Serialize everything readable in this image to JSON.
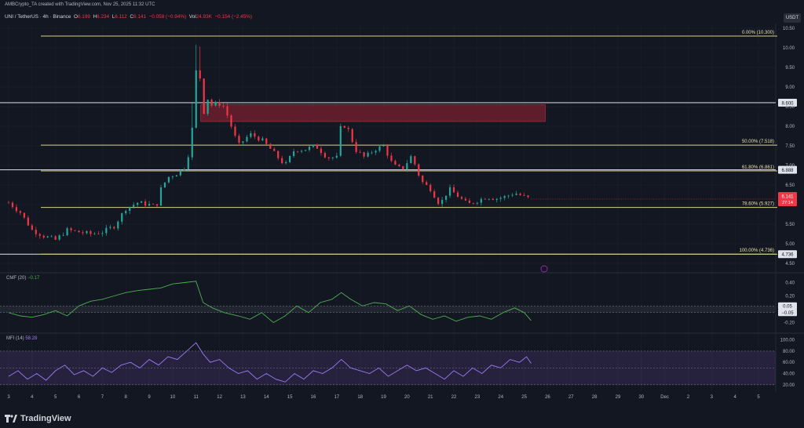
{
  "header": {
    "credit": "AMBCrypto_TA created with TradingView.com, Nov 25, 2025 11:32 UTC",
    "symbol": "UNI / TetherUS · 4h · Binance",
    "o_label": "O",
    "o": "6.199",
    "h_label": "H",
    "h": "6.234",
    "l_label": "L",
    "l": "6.112",
    "c_label": "C",
    "c": "6.141",
    "change": "−0.058 (−0.94%)",
    "vol_label": "Vol",
    "vol": "24.93K",
    "vol_change": "−0.154 (−2.45%)"
  },
  "currency": "USDT",
  "brand": "TradingView",
  "colors": {
    "up": "#26a69a",
    "down": "#f23645",
    "fib": "#d8cf8a",
    "level": "#e0e3eb",
    "zone": "#7a1f2f",
    "cmf": "#4caf50",
    "mfi": "#9c7cf4"
  },
  "chart_data": {
    "type": "candlestick",
    "price_axis": {
      "min": 4.5,
      "max": 10.5,
      "ticks": [
        "10.50",
        "10.00",
        "9.50",
        "9.00",
        "8.50",
        "8.00",
        "7.50",
        "7.00",
        "6.50",
        "6.00",
        "5.50",
        "5.00",
        "4.50"
      ]
    },
    "fib_levels": [
      {
        "label": "0.00% (10.300)",
        "value": 10.3
      },
      {
        "label": "50.00% (7.518)",
        "value": 7.518
      },
      {
        "label": "61.80% (6.861)",
        "value": 6.861
      },
      {
        "label": "78.60% (5.927)",
        "value": 5.927
      },
      {
        "label": "100.00% (4.736)",
        "value": 4.736
      }
    ],
    "horizontal_levels": [
      {
        "label": "8.600",
        "value": 8.6
      },
      {
        "label": "6.888",
        "value": 6.888
      },
      {
        "label": "4.736",
        "value": 4.736
      }
    ],
    "last_price": {
      "label": "6.141",
      "countdown": "27:14",
      "value": 6.141
    },
    "supply_zone": {
      "from_day": 11.2,
      "to_day": 25.9,
      "low": 8.12,
      "high": 8.55
    },
    "x_axis": {
      "ticks": [
        "3",
        "4",
        "5",
        "6",
        "7",
        "8",
        "9",
        "10",
        "11",
        "12",
        "13",
        "14",
        "15",
        "16",
        "17",
        "18",
        "19",
        "20",
        "21",
        "22",
        "23",
        "24",
        "25",
        "26",
        "27",
        "28",
        "29",
        "30",
        "Dec",
        "2",
        "3",
        "4",
        "5"
      ],
      "tick_days": [
        3,
        4,
        5,
        6,
        7,
        8,
        9,
        10,
        11,
        12,
        13,
        14,
        15,
        16,
        17,
        18,
        19,
        20,
        21,
        22,
        23,
        24,
        25,
        26,
        27,
        28,
        29,
        30,
        31,
        32,
        33,
        34,
        35
      ],
      "range_days": [
        2.9,
        35.2
      ]
    },
    "candles_anchor": [
      [
        3.0,
        6.05
      ],
      [
        3.5,
        5.8
      ],
      [
        4.0,
        5.35
      ],
      [
        4.5,
        5.2
      ],
      [
        5.0,
        5.1
      ],
      [
        5.5,
        5.35
      ],
      [
        6.0,
        5.3
      ],
      [
        6.5,
        5.25
      ],
      [
        7.0,
        5.3
      ],
      [
        7.5,
        5.45
      ],
      [
        8.0,
        5.9
      ],
      [
        8.5,
        6.05
      ],
      [
        9.0,
        6.0
      ],
      [
        9.3,
        5.95
      ],
      [
        9.5,
        6.4
      ],
      [
        9.8,
        6.7
      ],
      [
        10.2,
        6.8
      ],
      [
        10.6,
        7.0
      ],
      [
        10.9,
        8.2
      ],
      [
        11.0,
        9.4
      ],
      [
        11.2,
        9.2
      ],
      [
        11.3,
        8.3
      ],
      [
        11.5,
        8.7
      ],
      [
        11.7,
        8.5
      ],
      [
        11.9,
        8.6
      ],
      [
        12.2,
        8.5
      ],
      [
        12.5,
        8.0
      ],
      [
        12.8,
        7.5
      ],
      [
        13.3,
        7.8
      ],
      [
        13.8,
        7.65
      ],
      [
        14.2,
        7.4
      ],
      [
        14.5,
        7.2
      ],
      [
        14.8,
        7.0
      ],
      [
        15.2,
        7.4
      ],
      [
        15.6,
        7.4
      ],
      [
        16.1,
        7.5
      ],
      [
        16.6,
        7.2
      ],
      [
        17.0,
        7.2
      ],
      [
        17.2,
        8.1
      ],
      [
        17.5,
        7.9
      ],
      [
        17.8,
        7.4
      ],
      [
        18.2,
        7.2
      ],
      [
        18.6,
        7.4
      ],
      [
        19.0,
        7.5
      ],
      [
        19.4,
        7.0
      ],
      [
        19.8,
        6.9
      ],
      [
        20.2,
        7.25
      ],
      [
        20.6,
        6.6
      ],
      [
        21.0,
        6.4
      ],
      [
        21.4,
        6.0
      ],
      [
        21.8,
        6.4
      ],
      [
        22.2,
        6.2
      ],
      [
        22.6,
        6.0
      ],
      [
        23.0,
        6.1
      ],
      [
        23.4,
        6.2
      ],
      [
        23.8,
        6.15
      ],
      [
        24.2,
        6.2
      ],
      [
        24.6,
        6.3
      ],
      [
        25.0,
        6.2
      ],
      [
        25.3,
        6.14
      ]
    ],
    "cmf": {
      "label": "CMF (20)",
      "value": "−0.17",
      "axis_ticks": [
        "0.40",
        "0.20",
        "-0.20"
      ],
      "levels": [
        {
          "label": "0.05",
          "value": 0.05
        },
        {
          "label": "−0.05",
          "value": -0.05
        }
      ],
      "range": [
        -0.3,
        0.5
      ],
      "points": [
        [
          3.0,
          -0.05
        ],
        [
          3.5,
          -0.1
        ],
        [
          4.0,
          -0.12
        ],
        [
          4.5,
          -0.08
        ],
        [
          5.0,
          -0.02
        ],
        [
          5.5,
          -0.1
        ],
        [
          6.0,
          0.05
        ],
        [
          6.5,
          0.12
        ],
        [
          7.0,
          0.15
        ],
        [
          7.5,
          0.2
        ],
        [
          8.0,
          0.25
        ],
        [
          8.5,
          0.28
        ],
        [
          9.0,
          0.3
        ],
        [
          9.5,
          0.32
        ],
        [
          10.0,
          0.38
        ],
        [
          10.5,
          0.4
        ],
        [
          11.0,
          0.42
        ],
        [
          11.3,
          0.1
        ],
        [
          11.7,
          0.02
        ],
        [
          12.2,
          -0.05
        ],
        [
          12.8,
          -0.1
        ],
        [
          13.3,
          -0.15
        ],
        [
          13.8,
          -0.05
        ],
        [
          14.3,
          -0.2
        ],
        [
          14.8,
          -0.1
        ],
        [
          15.3,
          0.05
        ],
        [
          15.8,
          -0.05
        ],
        [
          16.3,
          0.1
        ],
        [
          16.8,
          0.15
        ],
        [
          17.2,
          0.25
        ],
        [
          17.6,
          0.15
        ],
        [
          18.1,
          0.05
        ],
        [
          18.6,
          0.1
        ],
        [
          19.1,
          0.08
        ],
        [
          19.6,
          -0.02
        ],
        [
          20.1,
          0.05
        ],
        [
          20.6,
          -0.08
        ],
        [
          21.1,
          -0.15
        ],
        [
          21.6,
          -0.1
        ],
        [
          22.1,
          -0.18
        ],
        [
          22.6,
          -0.12
        ],
        [
          23.1,
          -0.1
        ],
        [
          23.6,
          -0.15
        ],
        [
          24.1,
          -0.05
        ],
        [
          24.6,
          0.02
        ],
        [
          25.0,
          -0.05
        ],
        [
          25.3,
          -0.17
        ]
      ]
    },
    "mfi": {
      "label": "MFI (14)",
      "value": "58.28",
      "axis_ticks": [
        "100.00",
        "80.00",
        "60.00",
        "40.00",
        "20.00"
      ],
      "levels": [
        80,
        50,
        20
      ],
      "range": [
        10,
        105
      ],
      "points": [
        [
          3.0,
          35
        ],
        [
          3.4,
          45
        ],
        [
          3.8,
          30
        ],
        [
          4.2,
          40
        ],
        [
          4.6,
          28
        ],
        [
          5.0,
          45
        ],
        [
          5.4,
          55
        ],
        [
          5.8,
          38
        ],
        [
          6.2,
          45
        ],
        [
          6.6,
          35
        ],
        [
          7.0,
          50
        ],
        [
          7.4,
          42
        ],
        [
          7.8,
          55
        ],
        [
          8.2,
          60
        ],
        [
          8.6,
          50
        ],
        [
          9.0,
          65
        ],
        [
          9.4,
          55
        ],
        [
          9.8,
          70
        ],
        [
          10.2,
          65
        ],
        [
          10.6,
          80
        ],
        [
          11.0,
          95
        ],
        [
          11.3,
          75
        ],
        [
          11.6,
          60
        ],
        [
          12.0,
          65
        ],
        [
          12.4,
          50
        ],
        [
          12.8,
          40
        ],
        [
          13.2,
          45
        ],
        [
          13.6,
          30
        ],
        [
          14.0,
          40
        ],
        [
          14.4,
          30
        ],
        [
          14.8,
          25
        ],
        [
          15.2,
          40
        ],
        [
          15.6,
          30
        ],
        [
          16.0,
          45
        ],
        [
          16.4,
          40
        ],
        [
          16.8,
          50
        ],
        [
          17.2,
          65
        ],
        [
          17.6,
          50
        ],
        [
          18.0,
          45
        ],
        [
          18.4,
          40
        ],
        [
          18.8,
          50
        ],
        [
          19.2,
          35
        ],
        [
          19.6,
          45
        ],
        [
          20.0,
          55
        ],
        [
          20.4,
          45
        ],
        [
          20.8,
          50
        ],
        [
          21.2,
          40
        ],
        [
          21.6,
          30
        ],
        [
          22.0,
          45
        ],
        [
          22.4,
          35
        ],
        [
          22.8,
          50
        ],
        [
          23.2,
          40
        ],
        [
          23.6,
          55
        ],
        [
          24.0,
          50
        ],
        [
          24.4,
          65
        ],
        [
          24.8,
          60
        ],
        [
          25.1,
          70
        ],
        [
          25.3,
          58
        ]
      ]
    }
  }
}
